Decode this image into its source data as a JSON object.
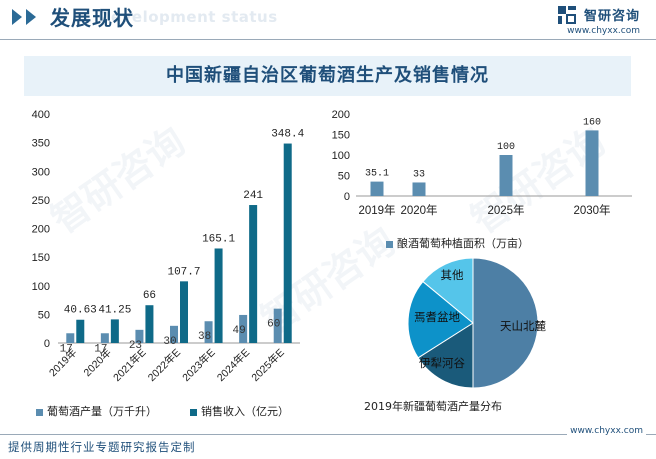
{
  "header": {
    "title": "发展现状",
    "subtitle": "Development status",
    "brand_name": "智研咨询",
    "brand_url": "www.chyxx.com"
  },
  "colors": {
    "navy": "#1f4f7a",
    "bar_light": "#5b8db0",
    "bar_dark": "#0f6a88",
    "pie_main": "#4d7fa5",
    "pie_second": "#1a5a7a",
    "pie_third": "#0d92c9",
    "pie_fourth": "#55c5ea",
    "title_bg": "#e8f2f9"
  },
  "main_title": "中国新疆自治区葡萄酒生产及销售情况",
  "footer": {
    "text": "提供周期性行业专题研究报告定制",
    "url": "www.chyxx.com"
  },
  "watermark": "智研咨询",
  "chart_data": [
    {
      "type": "bar",
      "categories": [
        "2019年",
        "2020年",
        "2021年E",
        "2022年E",
        "2023年E",
        "2024年E",
        "2025年E"
      ],
      "series": [
        {
          "name": "葡萄酒产量（万千升）",
          "values": [
            17,
            17,
            23,
            30,
            38,
            49,
            60
          ],
          "labels": [
            "17",
            "17",
            "23",
            "30",
            "38",
            "49",
            "60"
          ]
        },
        {
          "name": "销售收入（亿元）",
          "values": [
            40.63,
            41.25,
            66,
            107.7,
            165.1,
            241,
            348.4
          ],
          "labels": [
            "40.63",
            "41.25",
            "66",
            "107.7",
            "165.1",
            "241",
            "348.4"
          ]
        }
      ],
      "yticks": [
        "0",
        "50",
        "100",
        "150",
        "200",
        "250",
        "300",
        "350",
        "400"
      ],
      "ylim": [
        0,
        400
      ],
      "legend_position": "bottom"
    },
    {
      "type": "bar",
      "categories": [
        "2019年",
        "2020年",
        "2025年",
        "2030年"
      ],
      "series": [
        {
          "name": "酿酒葡萄种植面积（万亩）",
          "values": [
            35.1,
            33,
            100,
            160
          ],
          "labels": [
            "35.1",
            "33",
            "100",
            "160"
          ]
        }
      ],
      "yticks": [
        "0",
        "50",
        "100",
        "150",
        "200"
      ],
      "ylim": [
        0,
        200
      ],
      "legend_position": "bottom"
    },
    {
      "type": "pie",
      "title": "2019年新疆葡萄酒产量分布",
      "slices": [
        {
          "label": "天山北麓",
          "value": 50
        },
        {
          "label": "伊犁河谷",
          "value": 16
        },
        {
          "label": "焉耆盆地",
          "value": 20
        },
        {
          "label": "其他",
          "value": 14
        }
      ]
    }
  ]
}
